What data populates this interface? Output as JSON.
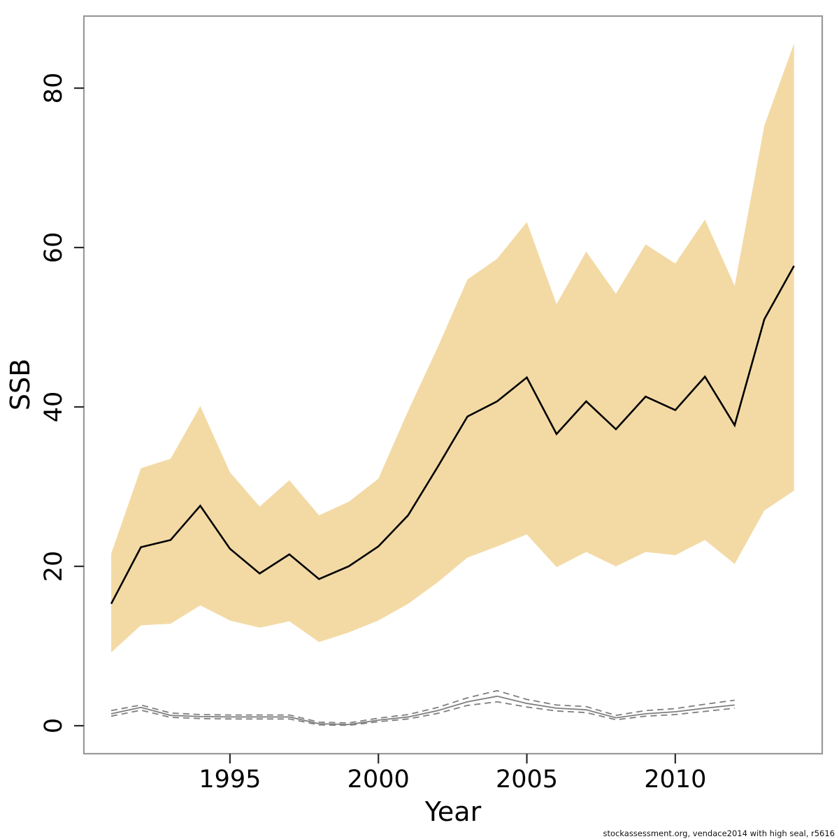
{
  "watermark": "stockassessment.org, vendace2014 with high seal, r5616",
  "colors": {
    "background": "#ffffff",
    "frame": "#999999",
    "tick": "#2a2a2a",
    "band_fill": "#F3DAA5",
    "median_line": "#000000",
    "secondary_line": "#7f7f7f",
    "watermark_text": "#111111"
  },
  "chart_data": {
    "type": "line",
    "title": "",
    "xlabel": "Year",
    "ylabel": "SSB",
    "legend": "none",
    "grid": false,
    "x_ticks": [
      1995,
      2000,
      2005,
      2010
    ],
    "y_ticks": [
      0,
      20,
      40,
      60,
      80
    ],
    "xlim": [
      1990.08,
      2014.95
    ],
    "ylim": [
      -3.51,
      89.04
    ],
    "years": [
      1991,
      1992,
      1993,
      1994,
      1995,
      1996,
      1997,
      1998,
      1999,
      2000,
      2001,
      2002,
      2003,
      2004,
      2005,
      2006,
      2007,
      2008,
      2009,
      2010,
      2011,
      2012,
      2013,
      2014
    ],
    "band": {
      "name": "ssb-confidence-band",
      "upper": [
        21.6,
        32.3,
        33.5,
        40.1,
        31.8,
        27.5,
        30.8,
        26.4,
        28.1,
        31.0,
        39.5,
        47.5,
        56.0,
        58.6,
        63.2,
        52.9,
        59.5,
        54.2,
        60.4,
        58.0,
        63.5,
        55.2,
        75.3,
        85.6
      ],
      "lower": [
        9.2,
        12.6,
        12.8,
        15.1,
        13.2,
        12.3,
        13.1,
        10.5,
        11.7,
        13.2,
        15.3,
        18.0,
        21.1,
        22.5,
        24.0,
        19.9,
        21.8,
        20.0,
        21.8,
        21.4,
        23.3,
        20.3,
        27.0,
        29.5
      ]
    },
    "secondary_years": [
      1991,
      1992,
      1993,
      1994,
      1995,
      1996,
      1997,
      1998,
      1999,
      2000,
      2001,
      2002,
      2003,
      2004,
      2005,
      2006,
      2007,
      2008,
      2009,
      2010,
      2011,
      2012
    ],
    "series": [
      {
        "name": "ssb-median-line",
        "label": "SSB estimate",
        "color": "#000000",
        "width": 2.6,
        "dash": "",
        "x_key": "years",
        "values": [
          15.3,
          22.4,
          23.3,
          27.6,
          22.2,
          19.1,
          21.5,
          18.4,
          20.0,
          22.5,
          26.4,
          32.5,
          38.8,
          40.7,
          43.7,
          36.6,
          40.7,
          37.2,
          41.3,
          39.6,
          43.8,
          37.7,
          51.0,
          57.7
        ]
      },
      {
        "name": "secondary-median-line",
        "label": "secondary estimate",
        "color": "#7f7f7f",
        "width": 1.8,
        "dash": "",
        "x_key": "secondary_years",
        "values": [
          1.5,
          2.3,
          1.3,
          1.15,
          1.1,
          1.1,
          1.1,
          0.25,
          0.15,
          0.7,
          1.1,
          1.9,
          3.0,
          3.7,
          2.8,
          2.2,
          2.0,
          1.0,
          1.5,
          1.75,
          2.2,
          2.6
        ]
      },
      {
        "name": "secondary-upper-dashed-line",
        "label": "secondary upper CI",
        "color": "#7f7f7f",
        "width": 1.8,
        "dash": "9,6",
        "x_key": "secondary_years",
        "values": [
          1.9,
          2.6,
          1.6,
          1.4,
          1.35,
          1.35,
          1.35,
          0.45,
          0.35,
          0.95,
          1.4,
          2.3,
          3.5,
          4.4,
          3.3,
          2.6,
          2.4,
          1.3,
          1.9,
          2.15,
          2.7,
          3.2
        ]
      },
      {
        "name": "secondary-lower-dashed-line",
        "label": "secondary lower CI",
        "color": "#7f7f7f",
        "width": 1.8,
        "dash": "9,6",
        "x_key": "secondary_years",
        "values": [
          1.2,
          1.95,
          1.05,
          0.9,
          0.85,
          0.85,
          0.85,
          0.1,
          0.05,
          0.5,
          0.85,
          1.55,
          2.55,
          3.0,
          2.35,
          1.85,
          1.65,
          0.75,
          1.2,
          1.4,
          1.8,
          2.2
        ]
      }
    ]
  }
}
